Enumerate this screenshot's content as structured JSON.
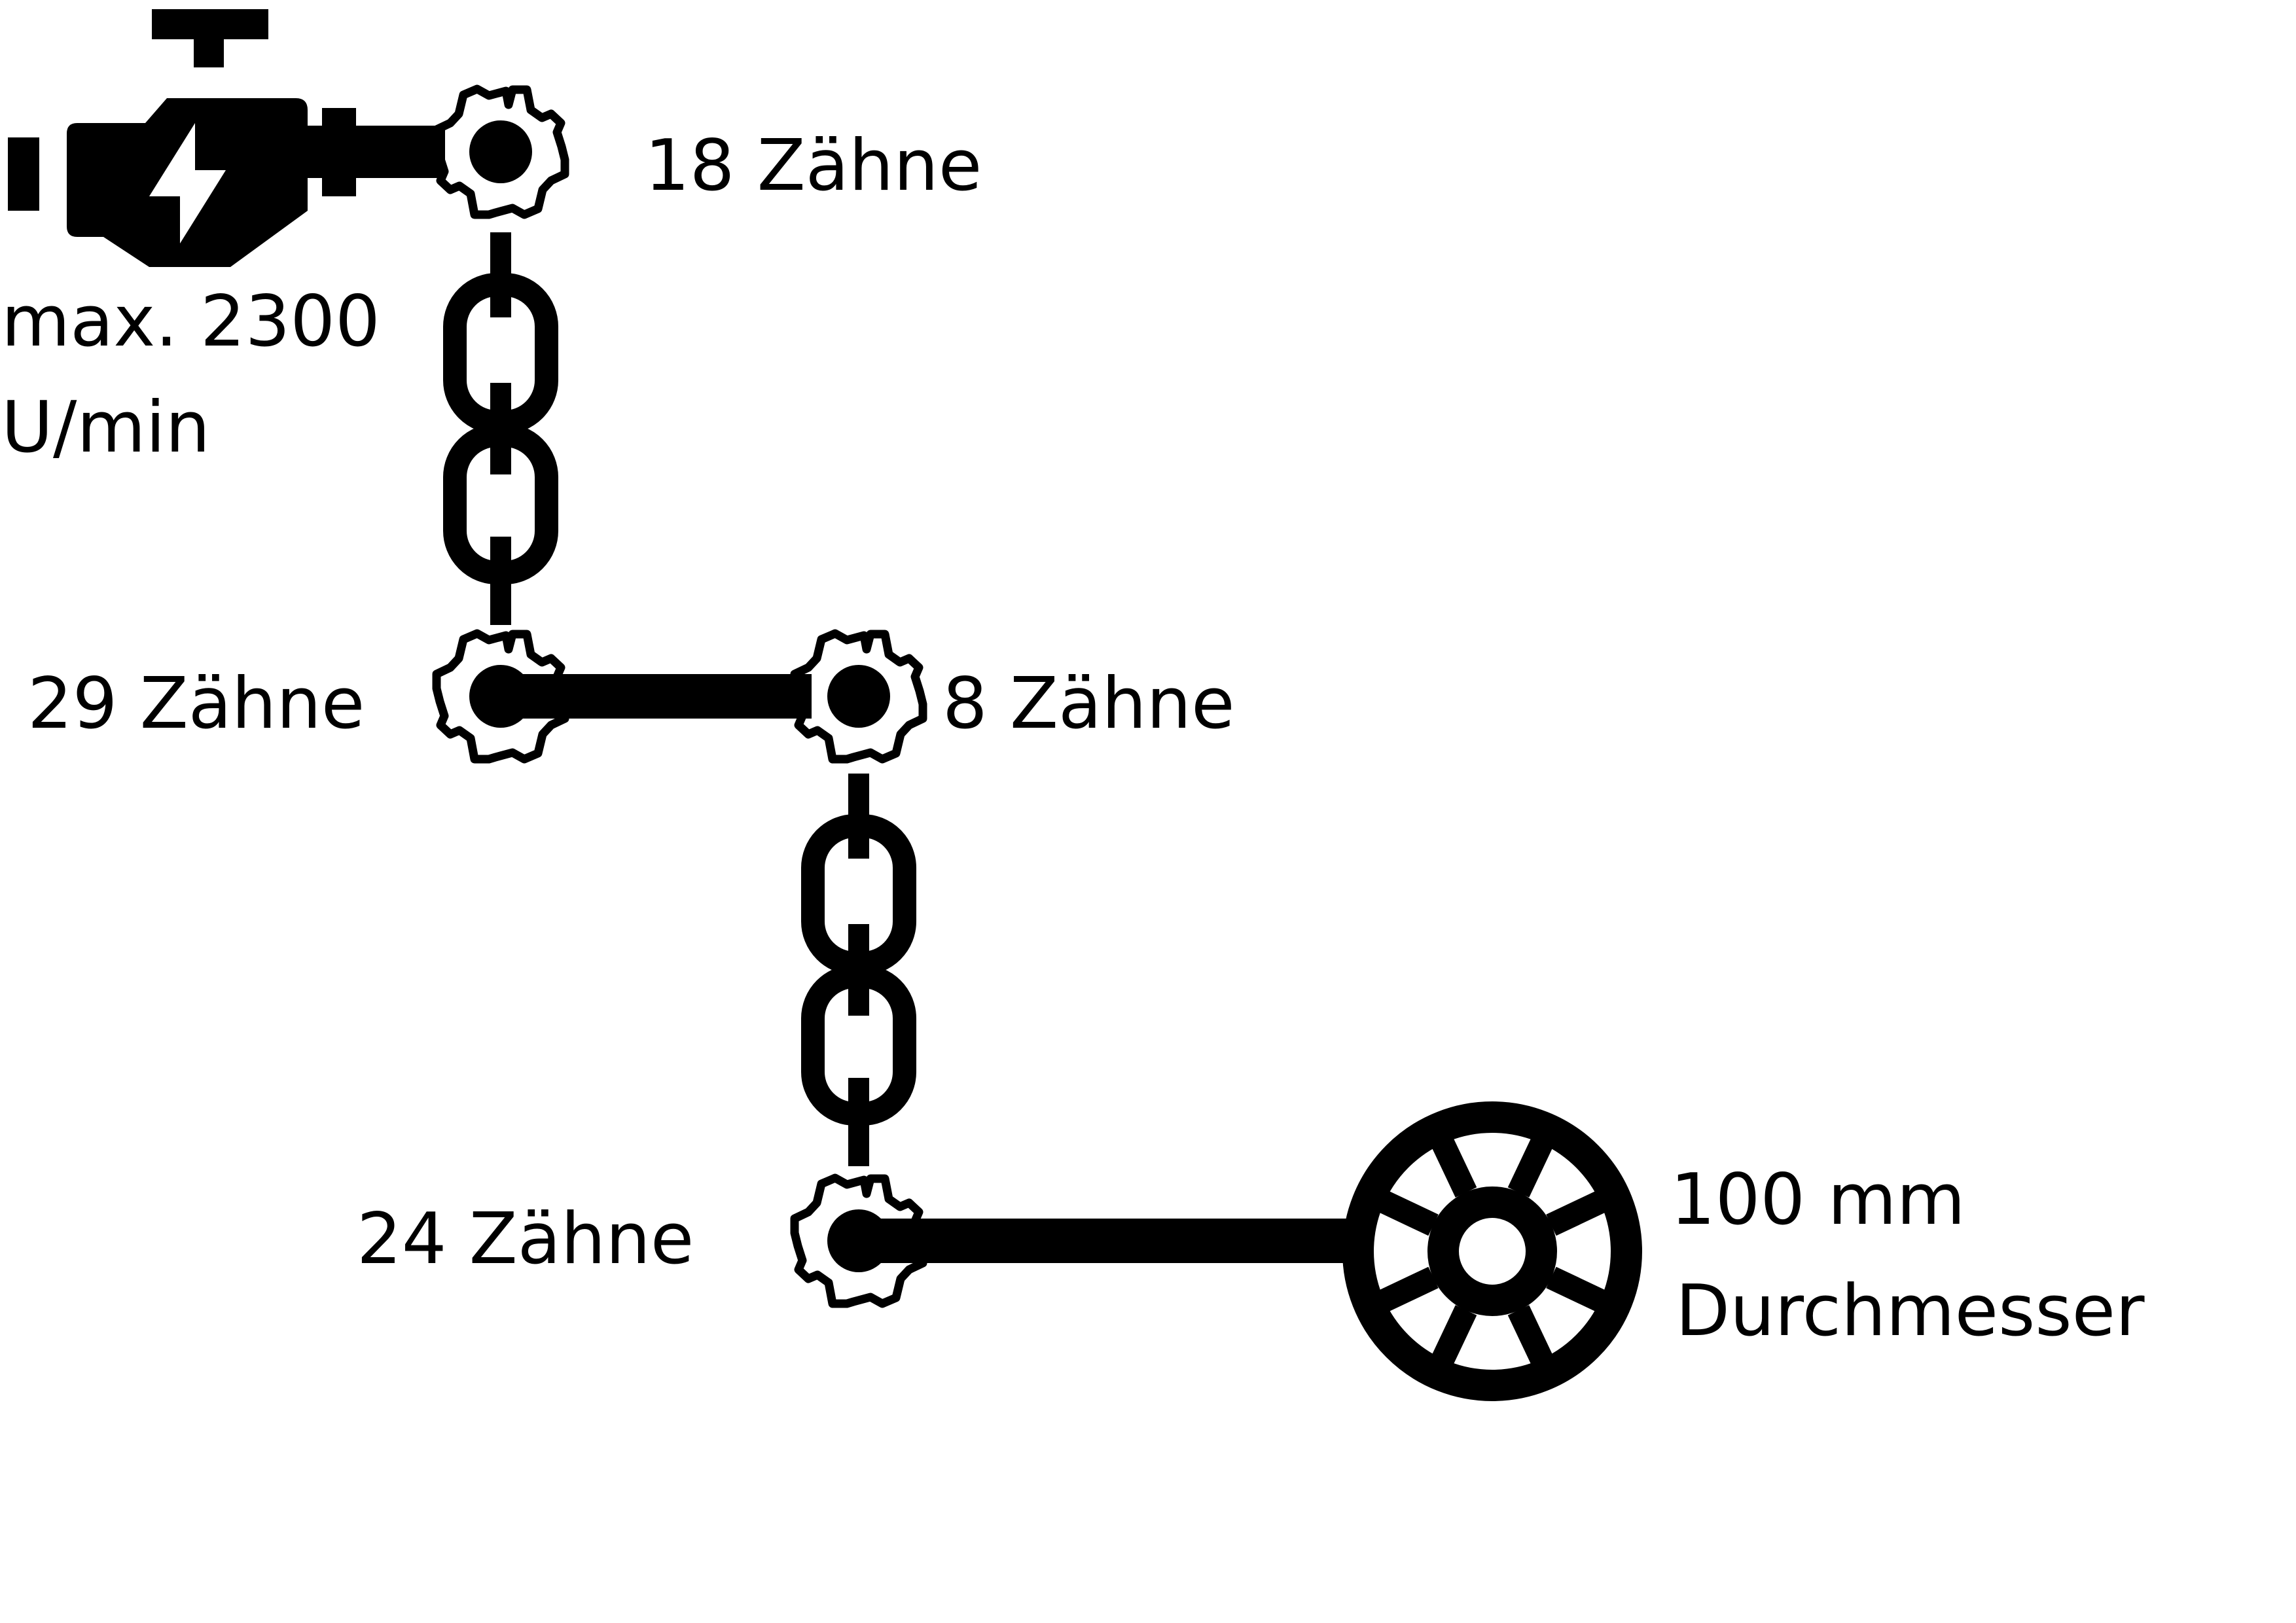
{
  "colors": {
    "ink": "#000000",
    "background": "#ffffff"
  },
  "motor": {
    "icon": "electric-motor-icon",
    "speed_line1": "max. 2300",
    "speed_line2": "U/min"
  },
  "gears": [
    {
      "label": "18 Zähne"
    },
    {
      "label": "29 Zähne"
    },
    {
      "label": "8 Zähne"
    },
    {
      "label": "24 Zähne"
    }
  ],
  "chains": [
    {
      "icon": "chain-icon"
    },
    {
      "icon": "chain-icon"
    }
  ],
  "wheel": {
    "icon": "wheel-icon",
    "label_line1": "100 mm",
    "label_line2": "Durchmesser"
  }
}
